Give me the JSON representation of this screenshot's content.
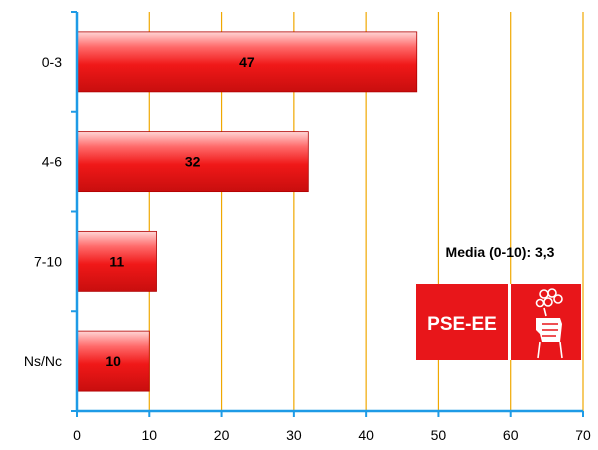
{
  "chart_data": {
    "type": "bar",
    "orientation": "horizontal",
    "categories": [
      "0-3",
      "4-6",
      "7-10",
      "Ns/Nc"
    ],
    "values": [
      47,
      32,
      11,
      10
    ],
    "xlim": [
      0,
      70
    ],
    "x_ticks": [
      0,
      10,
      20,
      30,
      40,
      50,
      60,
      70
    ],
    "grid": "vertical",
    "grid_color": "#f0a800",
    "axis_color": "#1e9be6",
    "bar_color": "#f01818",
    "annotation": "Media (0-10): 3,3"
  },
  "logo": {
    "text": "PSE-EE",
    "color": "#e8161a",
    "icon": "fist-rose-icon"
  }
}
